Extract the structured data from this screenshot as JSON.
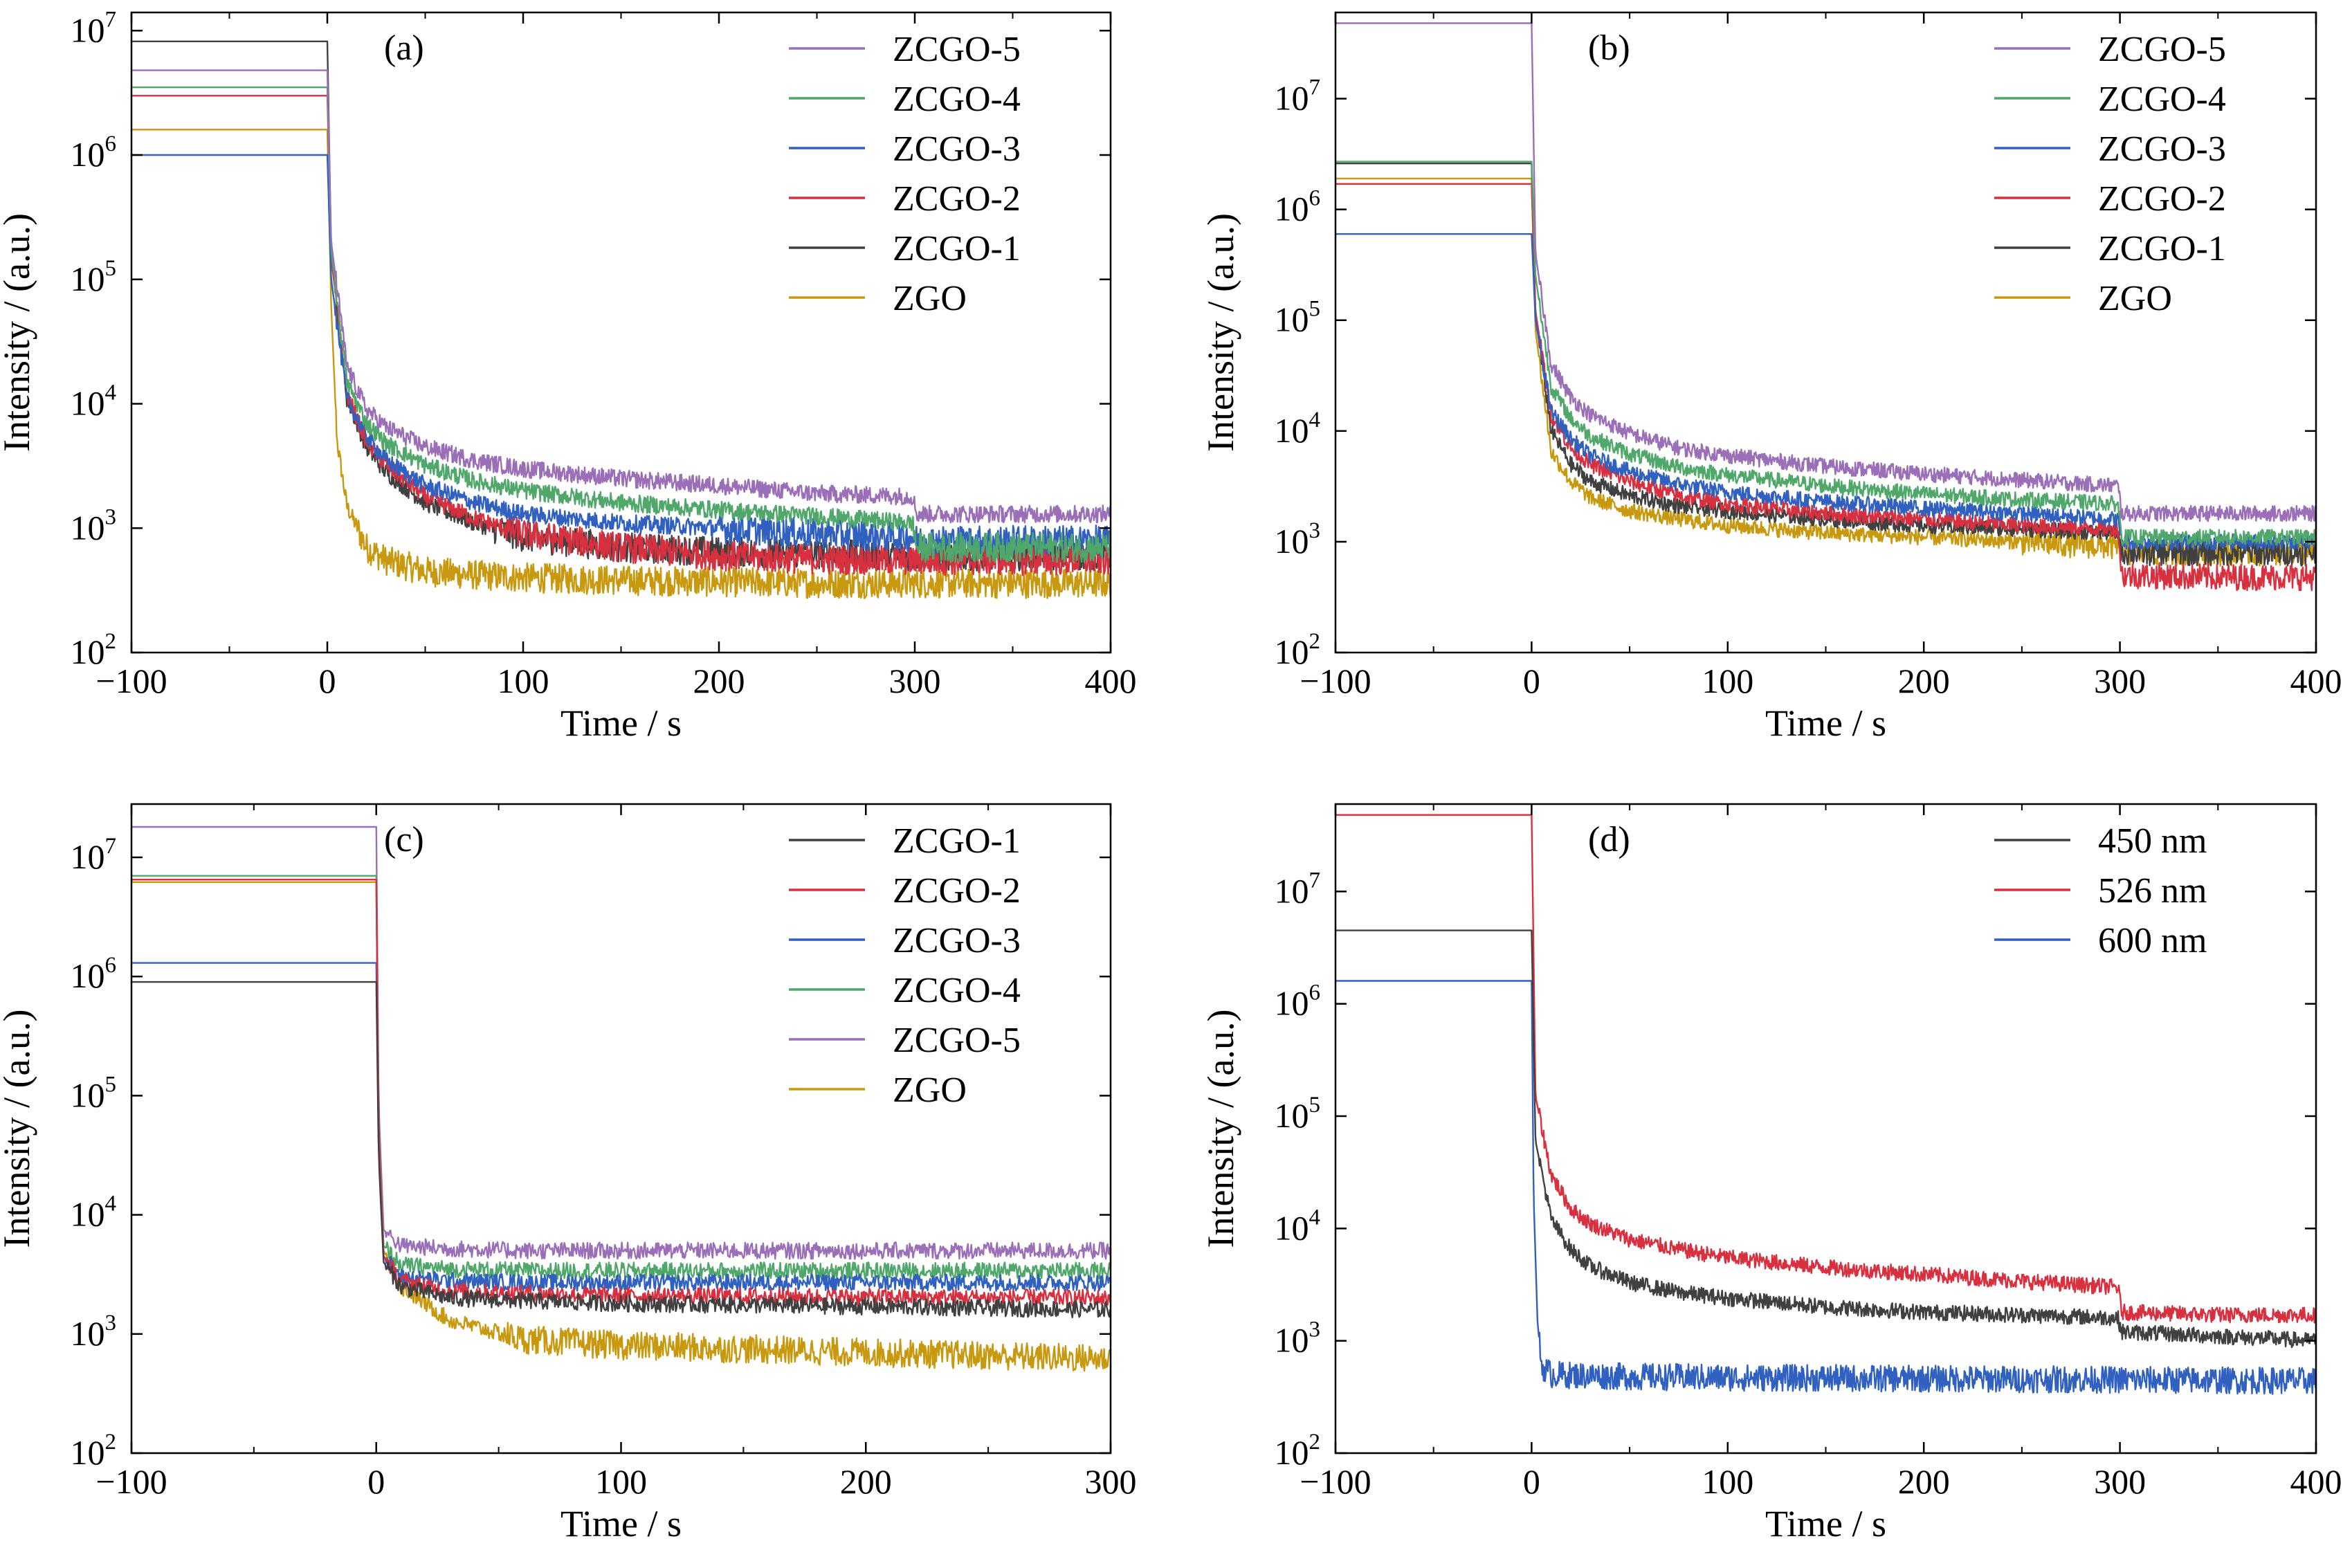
{
  "figure": {
    "description_free": true
  },
  "chart_data": [
    {
      "type": "line",
      "panel_label": "(a)",
      "xlabel": "Time / s",
      "ylabel": "Intensity / (a.u.)",
      "xlim": [
        -100,
        400
      ],
      "xticks": [
        -100,
        0,
        100,
        200,
        300,
        400
      ],
      "xtick_labels": [
        "−100",
        "0",
        "100",
        "200",
        "300",
        "400"
      ],
      "ylim": [
        100,
        14000000
      ],
      "yscale": "log",
      "yticks": [
        {
          "base": "10",
          "exp": "2",
          "value": 100
        },
        {
          "base": "10",
          "exp": "3",
          "value": 1000
        },
        {
          "base": "10",
          "exp": "4",
          "value": 10000
        },
        {
          "base": "10",
          "exp": "5",
          "value": 100000
        },
        {
          "base": "10",
          "exp": "6",
          "value": 1000000
        },
        {
          "base": "10",
          "exp": "7",
          "value": 10000000
        }
      ],
      "legend_position": "top-right",
      "series": [
        {
          "name": "ZCGO-5",
          "color": "#9b6fb8",
          "x": [
            -100,
            0,
            2,
            10,
            20,
            30,
            50,
            75,
            100,
            150,
            200,
            250,
            299,
            301,
            350,
            400
          ],
          "y": [
            4800000,
            4800000,
            200000,
            20000,
            9000,
            6500,
            4500,
            3500,
            3000,
            2500,
            2200,
            1900,
            1800,
            1300,
            1300,
            1300
          ]
        },
        {
          "name": "ZCGO-4",
          "color": "#4fa86a",
          "x": [
            -100,
            0,
            2,
            10,
            20,
            30,
            50,
            75,
            100,
            150,
            200,
            250,
            299,
            301,
            350,
            400
          ],
          "y": [
            3500000,
            3500000,
            170000,
            15000,
            7000,
            4800,
            3200,
            2400,
            2000,
            1600,
            1400,
            1250,
            1100,
            700,
            700,
            700
          ]
        },
        {
          "name": "ZCGO-3",
          "color": "#3060c0",
          "x": [
            -100,
            0,
            2,
            10,
            20,
            30,
            50,
            75,
            100,
            150,
            200,
            250,
            299,
            301,
            350,
            400
          ],
          "y": [
            1000000,
            1000000,
            100000,
            11000,
            5500,
            3500,
            2200,
            1600,
            1300,
            1100,
            1000,
            900,
            850,
            800,
            800,
            800
          ]
        },
        {
          "name": "ZCGO-2",
          "color": "#d93040",
          "x": [
            -100,
            0,
            2,
            10,
            20,
            30,
            50,
            75,
            100,
            150,
            200,
            250,
            299,
            301,
            350,
            400
          ],
          "y": [
            3000000,
            3000000,
            150000,
            12000,
            5000,
            3200,
            1800,
            1200,
            900,
            700,
            600,
            560,
            550,
            550,
            550,
            550
          ]
        },
        {
          "name": "ZCGO-1",
          "color": "#404040",
          "x": [
            -100,
            0,
            2,
            10,
            20,
            30,
            50,
            75,
            100,
            150,
            200,
            250,
            299,
            301,
            350,
            400
          ],
          "y": [
            8200000,
            8200000,
            160000,
            11000,
            4500,
            2800,
            1600,
            1100,
            850,
            700,
            650,
            620,
            600,
            600,
            600,
            600
          ]
        },
        {
          "name": "ZGO",
          "color": "#c8980e",
          "x": [
            -100,
            0,
            2,
            5,
            10,
            20,
            30,
            50,
            75,
            100,
            150,
            200,
            250,
            299,
            301,
            350,
            400
          ],
          "y": [
            1600000,
            1600000,
            60000,
            5000,
            1500,
            700,
            550,
            450,
            420,
            400,
            380,
            370,
            360,
            360,
            360,
            360,
            360
          ]
        }
      ]
    },
    {
      "type": "line",
      "panel_label": "(b)",
      "xlabel": "Time / s",
      "ylabel": "Intensity / (a.u.)",
      "xlim": [
        -100,
        400
      ],
      "xticks": [
        -100,
        0,
        100,
        200,
        300,
        400
      ],
      "xtick_labels": [
        "−100",
        "0",
        "100",
        "200",
        "300",
        "400"
      ],
      "ylim": [
        100,
        60000000
      ],
      "yscale": "log",
      "yticks": [
        {
          "base": "10",
          "exp": "2",
          "value": 100
        },
        {
          "base": "10",
          "exp": "3",
          "value": 1000
        },
        {
          "base": "10",
          "exp": "4",
          "value": 10000
        },
        {
          "base": "10",
          "exp": "5",
          "value": 100000
        },
        {
          "base": "10",
          "exp": "6",
          "value": 1000000
        },
        {
          "base": "10",
          "exp": "7",
          "value": 10000000
        }
      ],
      "legend_position": "top-right",
      "series": [
        {
          "name": "ZCGO-5",
          "color": "#9b6fb8",
          "x": [
            -100,
            0,
            2,
            10,
            20,
            30,
            50,
            75,
            100,
            150,
            200,
            250,
            299,
            301,
            350,
            400
          ],
          "y": [
            48000000,
            48000000,
            400000,
            40000,
            20000,
            14000,
            9500,
            7000,
            6000,
            4800,
            4100,
            3600,
            3200,
            1800,
            1800,
            1800
          ]
        },
        {
          "name": "ZCGO-4",
          "color": "#4fa86a",
          "x": [
            -100,
            0,
            2,
            10,
            20,
            30,
            50,
            75,
            100,
            150,
            200,
            250,
            299,
            301,
            350,
            400
          ],
          "y": [
            2700000,
            2700000,
            250000,
            25000,
            13000,
            9000,
            6200,
            4700,
            4000,
            3200,
            2700,
            2400,
            2200,
            1100,
            1100,
            1100
          ]
        },
        {
          "name": "ZCGO-3",
          "color": "#3060c0",
          "x": [
            -100,
            0,
            2,
            10,
            20,
            30,
            50,
            75,
            100,
            150,
            200,
            250,
            299,
            301,
            350,
            400
          ],
          "y": [
            600000,
            600000,
            100000,
            15000,
            8500,
            6000,
            4300,
            3300,
            2800,
            2300,
            2000,
            1800,
            1600,
            1000,
            1000,
            1000
          ]
        },
        {
          "name": "ZCGO-2",
          "color": "#d93040",
          "x": [
            -100,
            0,
            2,
            10,
            20,
            30,
            50,
            75,
            100,
            150,
            200,
            250,
            299,
            301,
            350,
            400
          ],
          "y": [
            1700000,
            1700000,
            120000,
            14000,
            7000,
            5000,
            3500,
            2600,
            2200,
            1800,
            1600,
            1400,
            1300,
            500,
            480,
            480
          ]
        },
        {
          "name": "ZCGO-1",
          "color": "#404040",
          "x": [
            -100,
            0,
            2,
            10,
            20,
            30,
            50,
            75,
            100,
            150,
            200,
            250,
            299,
            301,
            350,
            400
          ],
          "y": [
            2600000,
            2600000,
            110000,
            10000,
            5000,
            3500,
            2600,
            2100,
            1900,
            1600,
            1400,
            1300,
            1200,
            800,
            800,
            800
          ]
        },
        {
          "name": "ZGO",
          "color": "#c8980e",
          "x": [
            -100,
            0,
            2,
            10,
            20,
            30,
            50,
            75,
            100,
            150,
            200,
            250,
            299,
            301,
            350,
            400
          ],
          "y": [
            1900000,
            1900000,
            80000,
            6500,
            3500,
            2500,
            1900,
            1600,
            1400,
            1200,
            1100,
            1000,
            900,
            800,
            800,
            800
          ]
        }
      ]
    },
    {
      "type": "line",
      "panel_label": "(c)",
      "xlabel": "Time / s",
      "ylabel": "Intensity / (a.u.)",
      "xlim": [
        -100,
        300
      ],
      "xticks": [
        -100,
        0,
        100,
        200,
        300
      ],
      "xtick_labels": [
        "−100",
        "0",
        "100",
        "200",
        "300"
      ],
      "ylim": [
        100,
        28000000
      ],
      "yscale": "log",
      "yticks": [
        {
          "base": "10",
          "exp": "2",
          "value": 100
        },
        {
          "base": "10",
          "exp": "3",
          "value": 1000
        },
        {
          "base": "10",
          "exp": "4",
          "value": 10000
        },
        {
          "base": "10",
          "exp": "5",
          "value": 100000
        },
        {
          "base": "10",
          "exp": "6",
          "value": 1000000
        },
        {
          "base": "10",
          "exp": "7",
          "value": 10000000
        }
      ],
      "legend_position": "top-right",
      "series": [
        {
          "name": "ZCGO-1",
          "color": "#404040",
          "x": [
            -100,
            0,
            1,
            3,
            10,
            30,
            60,
            100,
            200,
            300
          ],
          "y": [
            900000,
            900000,
            30000,
            4000,
            2500,
            2000,
            1900,
            1800,
            1700,
            1600
          ]
        },
        {
          "name": "ZCGO-2",
          "color": "#d93040",
          "x": [
            -100,
            0,
            1,
            3,
            10,
            30,
            60,
            100,
            200,
            300
          ],
          "y": [
            6500000,
            6500000,
            50000,
            4500,
            2800,
            2300,
            2200,
            2100,
            2050,
            2000
          ]
        },
        {
          "name": "ZCGO-3",
          "color": "#3060c0",
          "x": [
            -100,
            0,
            1,
            3,
            10,
            30,
            60,
            100,
            200,
            300
          ],
          "y": [
            1300000,
            1300000,
            40000,
            4500,
            3000,
            2800,
            2700,
            2700,
            2700,
            2700
          ]
        },
        {
          "name": "ZCGO-4",
          "color": "#4fa86a",
          "x": [
            -100,
            0,
            1,
            3,
            10,
            30,
            60,
            100,
            200,
            300
          ],
          "y": [
            7000000,
            7000000,
            60000,
            5500,
            3800,
            3500,
            3400,
            3400,
            3400,
            3400
          ]
        },
        {
          "name": "ZCGO-5",
          "color": "#9b6fb8",
          "x": [
            -100,
            0,
            1,
            3,
            10,
            30,
            60,
            100,
            200,
            300
          ],
          "y": [
            18000000,
            18000000,
            80000,
            7500,
            5500,
            5200,
            5000,
            5000,
            5000,
            5000
          ]
        },
        {
          "name": "ZGO",
          "color": "#c8980e",
          "x": [
            -100,
            0,
            1,
            3,
            10,
            30,
            60,
            100,
            200,
            300
          ],
          "y": [
            6200000,
            6200000,
            40000,
            5000,
            2500,
            1300,
            900,
            800,
            700,
            620
          ]
        }
      ]
    },
    {
      "type": "line",
      "panel_label": "(d)",
      "xlabel": "Time / s",
      "ylabel": "Intensity / (a.u.)",
      "xlim": [
        -100,
        400
      ],
      "xticks": [
        -100,
        0,
        100,
        200,
        300,
        400
      ],
      "xtick_labels": [
        "−100",
        "0",
        "100",
        "200",
        "300",
        "400"
      ],
      "ylim": [
        100,
        60000000
      ],
      "yscale": "log",
      "yticks": [
        {
          "base": "10",
          "exp": "2",
          "value": 100
        },
        {
          "base": "10",
          "exp": "3",
          "value": 1000
        },
        {
          "base": "10",
          "exp": "4",
          "value": 10000
        },
        {
          "base": "10",
          "exp": "5",
          "value": 100000
        },
        {
          "base": "10",
          "exp": "6",
          "value": 1000000
        },
        {
          "base": "10",
          "exp": "7",
          "value": 10000000
        }
      ],
      "legend_position": "top-right",
      "series": [
        {
          "name": "450 nm",
          "color": "#404040",
          "x": [
            -100,
            0,
            2,
            10,
            20,
            30,
            50,
            75,
            100,
            150,
            200,
            250,
            299,
            301,
            350,
            400
          ],
          "y": [
            4500000,
            4500000,
            60000,
            12000,
            6500,
            4600,
            3300,
            2700,
            2400,
            2000,
            1800,
            1700,
            1600,
            1200,
            1100,
            1000
          ]
        },
        {
          "name": "526 nm",
          "color": "#d93040",
          "x": [
            -100,
            0,
            2,
            10,
            20,
            30,
            50,
            75,
            100,
            150,
            200,
            250,
            299,
            301,
            350,
            400
          ],
          "y": [
            48000000,
            48000000,
            150000,
            30000,
            15000,
            11000,
            8000,
            6500,
            5500,
            4500,
            3900,
            3400,
            3000,
            1800,
            1700,
            1700
          ]
        },
        {
          "name": "600 nm",
          "color": "#3060c0",
          "x": [
            -100,
            0,
            1,
            3,
            5,
            10,
            50,
            100,
            200,
            300,
            400
          ],
          "y": [
            1600000,
            1600000,
            20000,
            1500,
            600,
            500,
            480,
            470,
            460,
            450,
            440
          ]
        }
      ]
    }
  ]
}
